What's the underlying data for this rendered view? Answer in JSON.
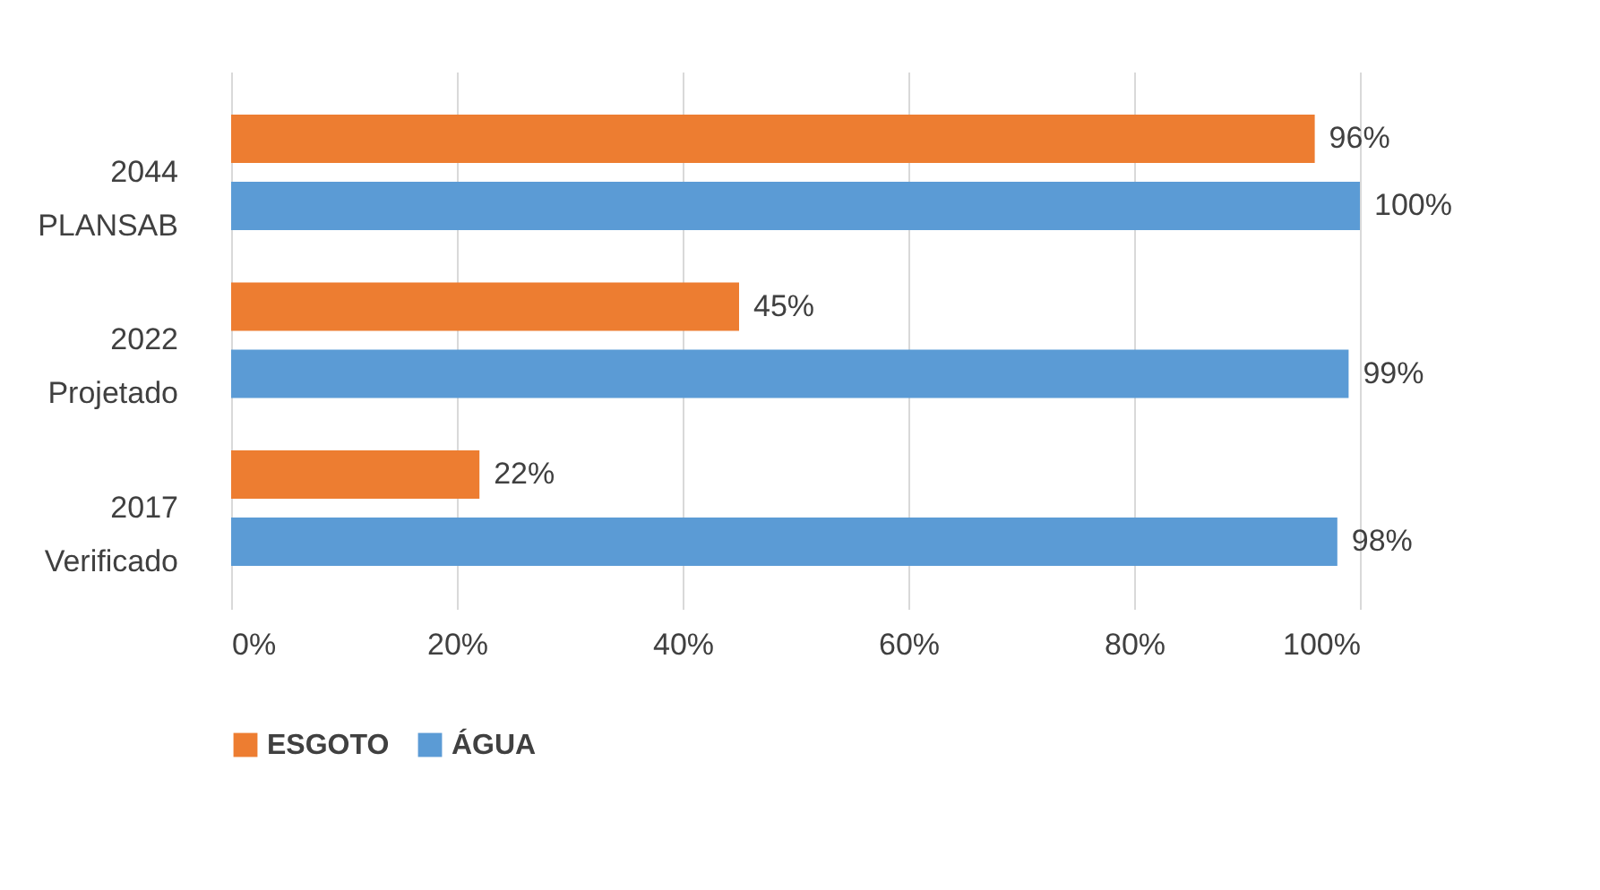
{
  "chart_data": {
    "type": "bar",
    "orientation": "horizontal",
    "categories": [
      "2044\nPLANSAB",
      "2022\nProjetado",
      "2017\nVerificado"
    ],
    "series": [
      {
        "name": "ESGOTO",
        "color": "#ed7d31",
        "values": [
          96,
          45,
          22
        ],
        "value_labels": [
          "96%",
          "45%",
          "22%"
        ]
      },
      {
        "name": "ÁGUA",
        "color": "#5b9bd5",
        "values": [
          100,
          99,
          98
        ],
        "value_labels": [
          "100%",
          "99%",
          "98%"
        ]
      }
    ],
    "xlim": [
      0,
      100
    ],
    "xticks": [
      {
        "value": 0,
        "label": "0%"
      },
      {
        "value": 20,
        "label": "20%"
      },
      {
        "value": 40,
        "label": "40%"
      },
      {
        "value": 60,
        "label": "60%"
      },
      {
        "value": 80,
        "label": "80%"
      },
      {
        "value": 100,
        "label": "100%"
      }
    ],
    "grid": "x",
    "legend": "bottom"
  }
}
